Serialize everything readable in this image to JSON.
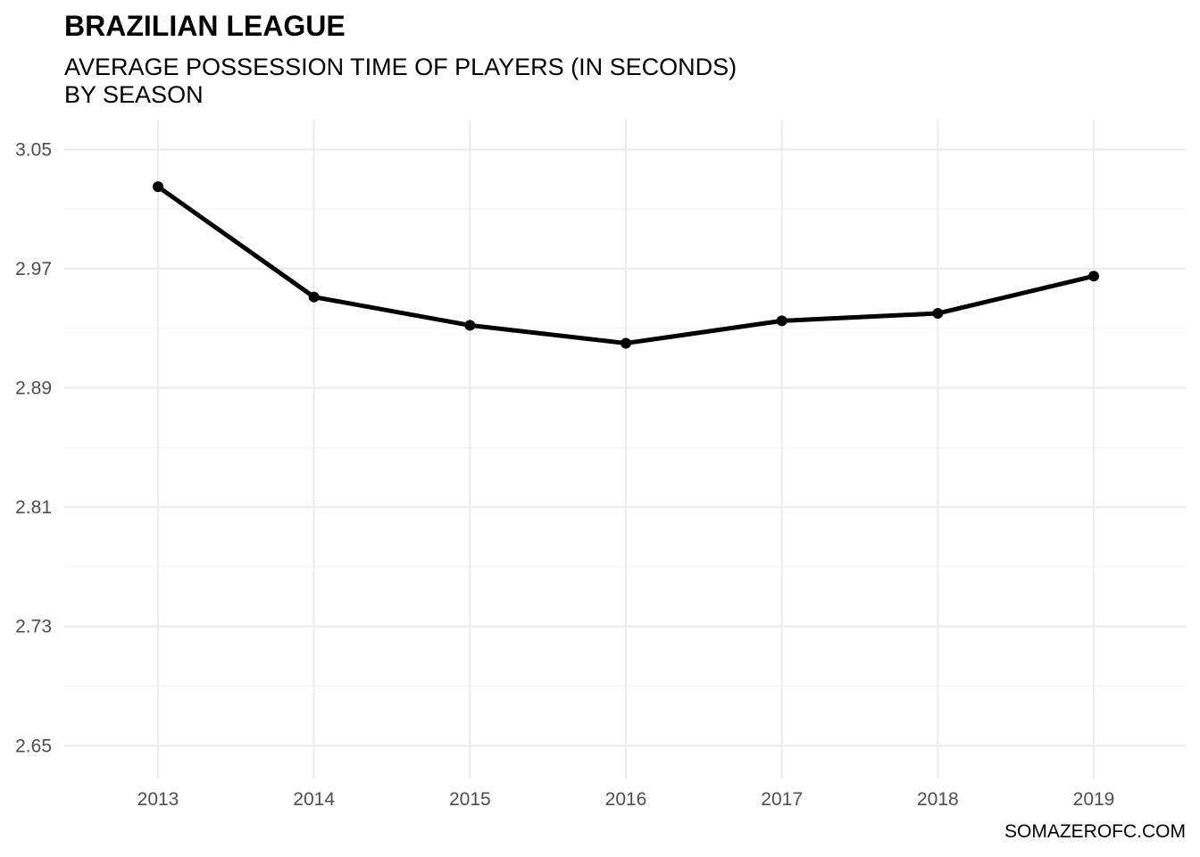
{
  "chart_data": {
    "type": "line",
    "title": "BRAZILIAN LEAGUE",
    "subtitle": "AVERAGE POSSESSION TIME OF PLAYERS (IN SECONDS)\nBY SEASON",
    "caption": "SOMAZEROFC.COM",
    "xlabel": "",
    "ylabel": "",
    "x": [
      "2013",
      "2014",
      "2015",
      "2016",
      "2017",
      "2018",
      "2019"
    ],
    "series": [
      {
        "values": [
          3.025,
          2.951,
          2.932,
          2.92,
          2.935,
          2.94,
          2.965
        ],
        "color": "#000000"
      }
    ],
    "ylim": [
      2.628,
      3.07
    ],
    "yticks": [
      2.65,
      2.73,
      2.81,
      2.89,
      2.97,
      3.05
    ],
    "ytick_labels": [
      "2.65",
      "2.73",
      "2.81",
      "2.89",
      "2.97",
      "3.05"
    ],
    "grid": true,
    "legend": "none"
  }
}
